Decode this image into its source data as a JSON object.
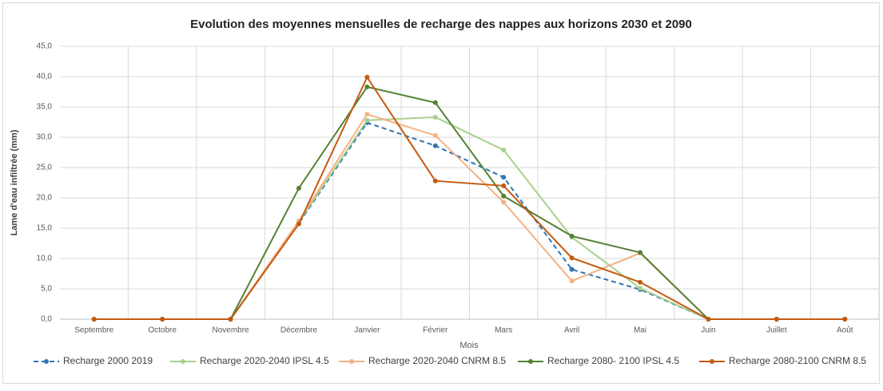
{
  "chart_data": {
    "type": "line",
    "title": "Evolution des moyennes mensuelles de recharge des nappes aux horizons 2030 et 2090",
    "x_label": "Mois",
    "y_label": "Lame d'eau infiltrée (mm)",
    "categories": [
      "Septembre",
      "Octobre",
      "Novembre",
      "Décembre",
      "Janvier",
      "Février",
      "Mars",
      "Avril",
      "Mai",
      "Juin",
      "Juillet",
      "Août"
    ],
    "series": [
      {
        "name": "Recharge 2000 2019",
        "color": "#2e75b6",
        "dashed": true,
        "values": [
          0,
          0,
          0,
          15.8,
          32.4,
          28.6,
          23.4,
          8.2,
          4.9,
          0,
          0,
          0
        ]
      },
      {
        "name": "Recharge 2020-2040 IPSL 4.5",
        "color": "#a9d18e",
        "dashed": false,
        "values": [
          0,
          0,
          0,
          16.0,
          32.8,
          33.3,
          27.9,
          13.5,
          5.1,
          0,
          0,
          0
        ]
      },
      {
        "name": "Recharge 2020-2040 CNRM 8.5",
        "color": "#f4b183",
        "dashed": false,
        "values": [
          0,
          0,
          0,
          16.2,
          33.8,
          30.3,
          19.3,
          6.3,
          10.9,
          0,
          0,
          0
        ]
      },
      {
        "name": "Recharge 2080- 2100 IPSL 4.5",
        "color": "#548235",
        "dashed": false,
        "values": [
          0,
          0,
          0,
          21.6,
          38.3,
          35.7,
          20.3,
          13.7,
          11.0,
          0,
          0,
          0
        ]
      },
      {
        "name": "Recharge 2080-2100 CNRM 8.5",
        "color": "#c55a11",
        "dashed": false,
        "values": [
          0,
          0,
          0,
          15.7,
          39.9,
          22.8,
          22.0,
          10.1,
          6.1,
          0,
          0,
          0
        ]
      }
    ],
    "ylim": [
      0,
      45
    ],
    "yticks": [
      {
        "value": 0,
        "label": "0,0"
      },
      {
        "value": 5,
        "label": "5,0"
      },
      {
        "value": 10,
        "label": "10,0"
      },
      {
        "value": 15,
        "label": "15,0"
      },
      {
        "value": 20,
        "label": "20,0"
      },
      {
        "value": 25,
        "label": "25,0"
      },
      {
        "value": 30,
        "label": "30,0"
      },
      {
        "value": 35,
        "label": "35,0"
      },
      {
        "value": 40,
        "label": "40,0"
      },
      {
        "value": 45,
        "label": "45,0"
      }
    ],
    "grid": true
  }
}
